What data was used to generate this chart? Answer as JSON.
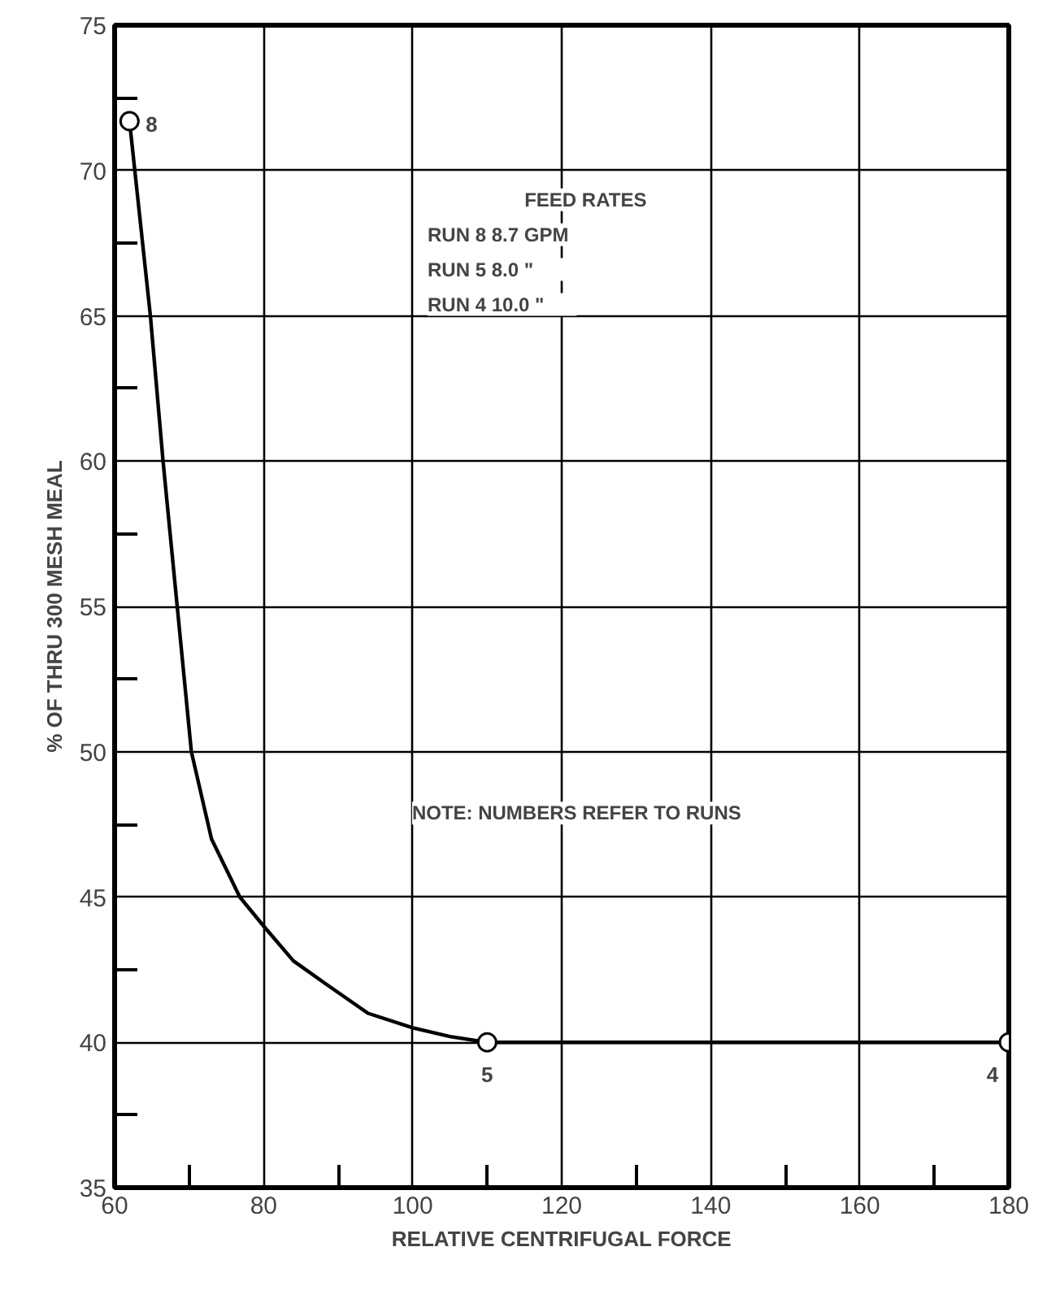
{
  "chart_data": {
    "type": "line",
    "xlabel": "RELATIVE CENTRIFUGAL FORCE",
    "ylabel": "% OF THRU 300 MESH MEAL",
    "xlim": [
      60,
      180
    ],
    "ylim": [
      35,
      75
    ],
    "xticks": [
      60,
      {
        "value": 70,
        "label": null
      },
      80,
      {
        "value": 90,
        "label": null
      },
      100,
      {
        "value": 110,
        "label": null
      },
      120,
      {
        "value": 130,
        "label": null
      },
      140,
      {
        "value": 150,
        "label": null
      },
      160,
      {
        "value": 170,
        "label": null
      },
      180
    ],
    "yticks": [
      35,
      {
        "value": 37.5,
        "label": null
      },
      40,
      {
        "value": 42.5,
        "label": null
      },
      45,
      {
        "value": 47.5,
        "label": null
      },
      50,
      {
        "value": 52.5,
        "label": null
      },
      55,
      {
        "value": 57.5,
        "label": null
      },
      60,
      {
        "value": 62.5,
        "label": null
      },
      65,
      {
        "value": 67.5,
        "label": null
      },
      70,
      {
        "value": 72.5,
        "label": null
      },
      75
    ],
    "grid": true,
    "series": [
      {
        "color": "#000000",
        "marker": "none",
        "x": [
          62,
          64.8,
          66.5,
          68.4,
          70.3,
          73,
          76.8,
          80,
          84,
          88.4,
          94,
          100,
          105,
          110,
          180
        ],
        "values": [
          71.7,
          65,
          60,
          55,
          50,
          47,
          45,
          44,
          42.8,
          42,
          41,
          40.5,
          40.2,
          40,
          40
        ]
      },
      {
        "type": "scatter",
        "color": "#000000",
        "marker": "circle",
        "x": [
          62,
          110,
          180
        ],
        "values": [
          71.7,
          40,
          40
        ]
      }
    ],
    "annotations": [
      {
        "text": "8",
        "x": 62,
        "y": 71.7
      },
      {
        "text": "5",
        "x": 110,
        "y": 40
      },
      {
        "text": "4",
        "x": 180,
        "y": 40
      },
      "FEED RATES",
      "RUN 8    8.7   GPM",
      "RUN 5    8.0     \"",
      "RUN 4   10.0     \"",
      "NOTE: NUMBERS REFER TO RUNS"
    ]
  }
}
